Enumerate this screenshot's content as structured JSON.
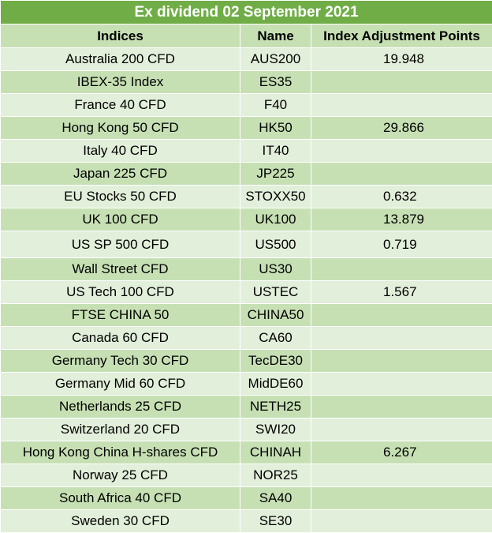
{
  "table": {
    "title": "Ex dividend 02 September 2021",
    "headers": {
      "indices": "Indices",
      "name": "Name",
      "points": "Index Adjustment Points"
    },
    "rows": [
      {
        "index": "Australia 200 CFD",
        "name": "AUS200",
        "points": "19.948"
      },
      {
        "index": "IBEX-35 Index",
        "name": "ES35",
        "points": ""
      },
      {
        "index": "France 40 CFD",
        "name": "F40",
        "points": ""
      },
      {
        "index": "Hong Kong 50 CFD",
        "name": "HK50",
        "points": "29.866"
      },
      {
        "index": "Italy 40 CFD",
        "name": "IT40",
        "points": ""
      },
      {
        "index": "Japan 225 CFD",
        "name": "JP225",
        "points": ""
      },
      {
        "index": "EU Stocks 50 CFD",
        "name": "STOXX50",
        "points": "0.632"
      },
      {
        "index": "UK 100 CFD",
        "name": "UK100",
        "points": "13.879"
      },
      {
        "index": "US SP 500 CFD",
        "name": "US500",
        "points": "0.719"
      },
      {
        "index": "Wall Street CFD",
        "name": "US30",
        "points": ""
      },
      {
        "index": "US Tech 100 CFD",
        "name": "USTEC",
        "points": "1.567"
      },
      {
        "index": "FTSE CHINA 50",
        "name": "CHINA50",
        "points": ""
      },
      {
        "index": "Canada 60 CFD",
        "name": "CA60",
        "points": ""
      },
      {
        "index": "Germany Tech 30 CFD",
        "name": "TecDE30",
        "points": ""
      },
      {
        "index": "Germany Mid 60 CFD",
        "name": "MidDE60",
        "points": ""
      },
      {
        "index": "Netherlands 25 CFD",
        "name": "NETH25",
        "points": ""
      },
      {
        "index": "Switzerland 20 CFD",
        "name": "SWI20",
        "points": ""
      },
      {
        "index": "Hong Kong China H-shares CFD",
        "name": "CHINAH",
        "points": "6.267"
      },
      {
        "index": "Norway 25 CFD",
        "name": "NOR25",
        "points": ""
      },
      {
        "index": "South Africa 40 CFD",
        "name": "SA40",
        "points": ""
      },
      {
        "index": "Sweden 30 CFD",
        "name": "SE30",
        "points": ""
      }
    ]
  }
}
